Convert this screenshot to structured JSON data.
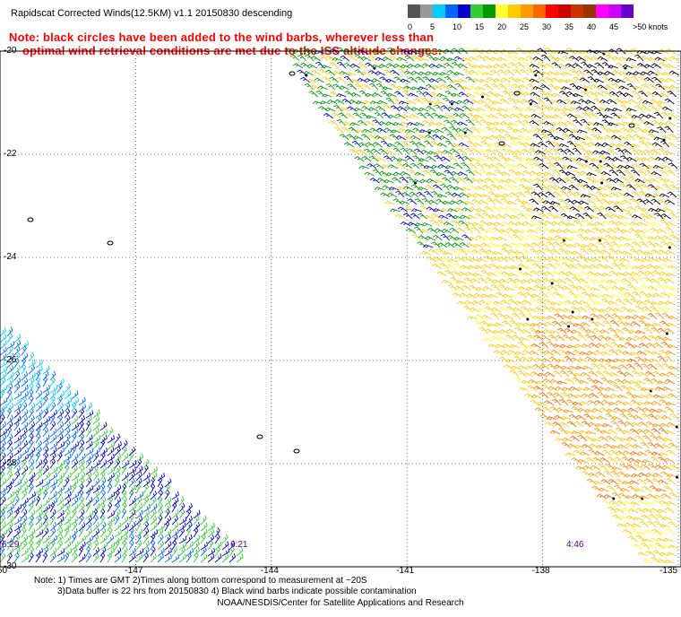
{
  "title": "Rapidscat Corrected Winds(12.5KM) v1.1 20150830 descending",
  "note": {
    "line1": "Note: black circles have been added to the wind barbs, wherever less than",
    "line2": "optimal wind retrieval conditions are met due to the ISS altitude changes."
  },
  "colorbar": {
    "unit_label": ">50 knots",
    "ticks": [
      "0",
      "5",
      "10",
      "15",
      "20",
      "25",
      "30",
      "35",
      "40",
      "45"
    ],
    "colors": [
      "#555555",
      "#999999",
      "#00ccff",
      "#0066ff",
      "#0000cc",
      "#33cc33",
      "#009900",
      "#ffff33",
      "#ffcc00",
      "#ff9900",
      "#ff6600",
      "#ff0000",
      "#cc0000",
      "#cc3300",
      "#993300",
      "#ff00ff",
      "#cc00ff",
      "#6600cc"
    ]
  },
  "map": {
    "lat_labels": [
      "-20",
      "-22",
      "-24",
      "-26",
      "-28",
      "-30"
    ],
    "lon_labels": [
      "-150",
      "-147",
      "-144",
      "-141",
      "-138",
      "-135"
    ],
    "lat_range": [
      -30,
      -20
    ],
    "lon_range": [
      -150,
      -135
    ],
    "grid": true,
    "time_labels": [
      "6:29",
      "6:21",
      "4:46"
    ]
  },
  "footer": {
    "line1": "Note: 1) Times are GMT 2)Times along bottom correspond to measurement at ~20S",
    "line2": "3)Data buffer is 22 hrs from 20150830 4) Black wind barbs indicate possible contamination"
  },
  "credit": "NOAA/NESDIS/Center for Satellite Applications and Research"
}
